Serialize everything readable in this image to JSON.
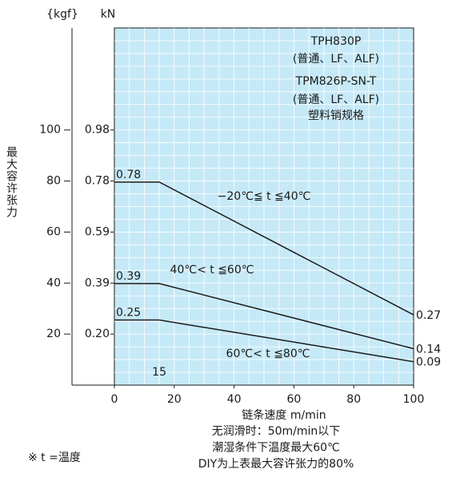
{
  "chart_data": {
    "type": "line",
    "title_lines": [
      "TPH830P",
      "(普通、LF、ALF)",
      "TPM826P-SN-T",
      "(普通、LF、ALF)",
      "塑料销规格"
    ],
    "ylabel": "最大容许张力",
    "yunit": "{kgf}",
    "y2unit": "kN",
    "xlabel": "链条速度  m/min",
    "x": [
      0,
      15,
      100
    ],
    "xlim": [
      0,
      100
    ],
    "xticks": [
      0,
      20,
      40,
      60,
      80,
      100
    ],
    "ylim": [
      0,
      140
    ],
    "yticks": [
      20,
      40,
      60,
      80,
      100
    ],
    "y2lim": [
      0,
      1.372
    ],
    "y2ticks": [
      {
        "value": 0.196,
        "label": "0.20"
      },
      {
        "value": 0.392,
        "label": "0.39"
      },
      {
        "value": 0.588,
        "label": "0.59"
      },
      {
        "value": 0.784,
        "label": "0.78"
      },
      {
        "value": 0.98,
        "label": "0.98"
      }
    ],
    "breakpoint": 15,
    "grid": true,
    "background": "#c6e9f7",
    "series": [
      {
        "name": "−20℃≦ t ≦40℃",
        "color": "#1a1a1a",
        "axis": "y2",
        "values": [
          0.78,
          0.78,
          0.27
        ],
        "value_labels": [
          "0.78",
          null,
          "0.27"
        ]
      },
      {
        "name": "40℃< t ≦60℃",
        "color": "#1a1a1a",
        "axis": "y2",
        "values": [
          0.39,
          0.39,
          0.14
        ],
        "value_labels": [
          "0.39",
          null,
          "0.14"
        ]
      },
      {
        "name": "60℃< t ≦80℃",
        "color": "#1a1a1a",
        "axis": "y2",
        "values": [
          0.25,
          0.25,
          0.09
        ],
        "value_labels": [
          "0.25",
          null,
          "0.09"
        ]
      }
    ],
    "notes": [
      "无润滑时：50m/min以下",
      "潮湿条件下温度最大60℃",
      "DIY为上表最大容许张力的80%"
    ],
    "footnote": "※ t =温度"
  }
}
